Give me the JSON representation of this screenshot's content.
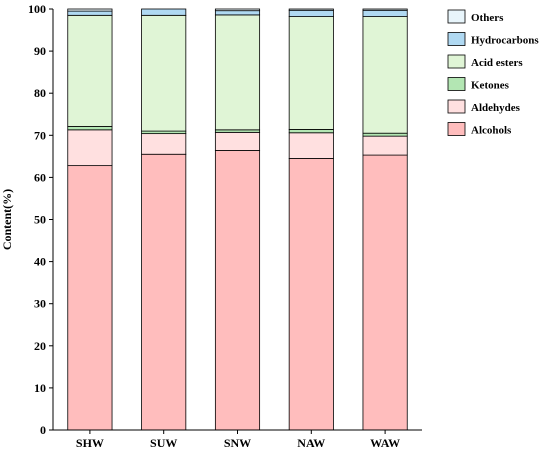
{
  "chart_data": {
    "type": "bar",
    "stacked": true,
    "title": "",
    "xlabel": "",
    "ylabel": "Content(%)",
    "ylim": [
      0,
      100
    ],
    "yticks": [
      0,
      10,
      20,
      30,
      40,
      50,
      60,
      70,
      80,
      90,
      100
    ],
    "categories": [
      "SHW",
      "SUW",
      "SNW",
      "NAW",
      "WAW"
    ],
    "legend_position": "top-right",
    "legend_order": [
      "Others",
      "Hydrocarbons",
      "Acid esters",
      "Ketones",
      "Aldehydes",
      "Alcohols"
    ],
    "series": [
      {
        "name": "Alcohols",
        "color": "#ffbdbd",
        "values": [
          62.8,
          65.5,
          66.4,
          64.5,
          65.3
        ]
      },
      {
        "name": "Aldehydes",
        "color": "#ffe0e0",
        "values": [
          8.5,
          4.9,
          4.3,
          6.1,
          4.5
        ]
      },
      {
        "name": "Ketones",
        "color": "#b3e6b3",
        "values": [
          0.8,
          0.6,
          0.6,
          0.8,
          0.7
        ]
      },
      {
        "name": "Acid esters",
        "color": "#e0f5d6",
        "values": [
          26.4,
          27.5,
          27.3,
          26.8,
          27.7
        ]
      },
      {
        "name": "Hydrocarbons",
        "color": "#b0d9f2",
        "values": [
          1.0,
          1.5,
          1.0,
          1.5,
          1.5
        ]
      },
      {
        "name": "Others",
        "color": "#e8f5fb",
        "values": [
          0.5,
          0.0,
          0.4,
          0.3,
          0.3
        ]
      }
    ]
  }
}
